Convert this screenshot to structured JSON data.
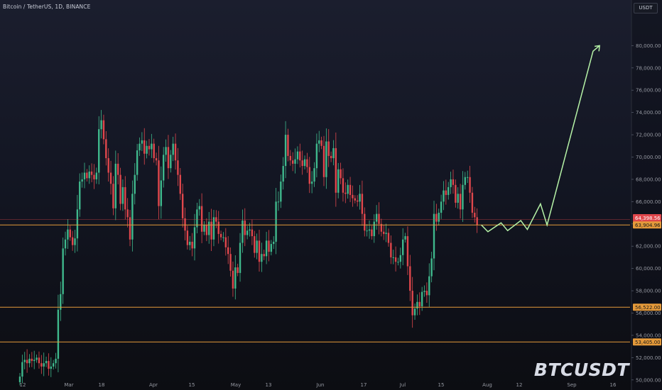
{
  "header": {
    "symbol_title": "Bitcoin / TetherUS, 1D, BINANCE"
  },
  "currency": "USDT",
  "watermark": "BTCUSDT",
  "chart_data": {
    "type": "candlestick",
    "title": "Bitcoin / TetherUS, 1D, BINANCE",
    "ylim": [
      49000,
      82000
    ],
    "y_ticks": [
      "50,000.00",
      "52,000.00",
      "54,000.00",
      "56,000.00",
      "58,000.00",
      "60,000.00",
      "62,000.00",
      "64,000.00",
      "66,000.00",
      "68,000.00",
      "70,000.00",
      "72,000.00",
      "74,000.00",
      "76,000.00",
      "78,000.00",
      "80,000.00"
    ],
    "x_ticks": [
      "12",
      "Mar",
      "18",
      "Apr",
      "15",
      "May",
      "13",
      "Jun",
      "17",
      "Jul",
      "15",
      "Aug",
      "12",
      "Sep",
      "16"
    ],
    "colors": {
      "up": "#3fb88c",
      "down": "#e0474c",
      "level": "#e59a3a",
      "projection": "#b6f3a7"
    },
    "closes": [
      50300,
      51600,
      51800,
      51500,
      51900,
      51700,
      51800,
      52000,
      51500,
      51200,
      51500,
      51700,
      51000,
      51200,
      51500,
      51900,
      56300,
      57700,
      61800,
      62600,
      63500,
      62800,
      62100,
      62700,
      65300,
      67800,
      68000,
      68600,
      68100,
      68700,
      68400,
      68000,
      68600,
      72500,
      73300,
      71600,
      69900,
      68600,
      67600,
      65400,
      69400,
      68400,
      65800,
      67300,
      65300,
      64600,
      62600,
      66700,
      68400,
      70600,
      71200,
      71500,
      70300,
      71000,
      70700,
      71200,
      69900,
      69700,
      65600,
      67900,
      70200,
      70900,
      69000,
      70200,
      71200,
      69700,
      68400,
      66700,
      64500,
      63400,
      62100,
      62400,
      61800,
      63700,
      65300,
      65600,
      63300,
      63900,
      63000,
      64200,
      62600,
      64600,
      64200,
      63100,
      62800,
      62800,
      61900,
      61300,
      59800,
      58200,
      60100,
      59600,
      62300,
      64300,
      63000,
      63400,
      63500,
      62900,
      61400,
      62500,
      60600,
      61300,
      61100,
      62500,
      61500,
      62200,
      62400,
      66000,
      66000,
      67800,
      69200,
      72000,
      70100,
      69700,
      69400,
      69800,
      70500,
      69700,
      69200,
      69800,
      69100,
      67600,
      67800,
      69000,
      71200,
      71500,
      71000,
      68200,
      71400,
      70100,
      69900,
      70800,
      66800,
      68900,
      68100,
      66800,
      66700,
      67500,
      66600,
      66300,
      66100,
      66000,
      66700,
      64900,
      63400,
      63400,
      63500,
      62900,
      64200,
      64900,
      64000,
      63300,
      63100,
      63200,
      62300,
      61000,
      61000,
      60600,
      60600,
      61200,
      62600,
      62900,
      60200,
      58000,
      55800,
      56400,
      57000,
      56600,
      57900,
      58000,
      57600,
      59300,
      60900,
      64900,
      64200,
      65000,
      66000,
      67000,
      66600,
      67300,
      68000,
      67500,
      65900,
      66700,
      65300,
      67500,
      68200,
      68200,
      66800,
      65000,
      64600,
      63900
    ],
    "levels": [
      {
        "price": 63904.96,
        "label": "63,904.96"
      },
      {
        "price": 56522.0,
        "label": "56,522.00"
      },
      {
        "price": 53405.0,
        "label": "53,405.00"
      }
    ],
    "last_price": {
      "value": 64398.56,
      "label": "64,398.56",
      "countdown": "16:18:28"
    },
    "projection": [
      [
        63904.96,
        0
      ],
      [
        63300,
        1
      ],
      [
        64100,
        3
      ],
      [
        63400,
        4
      ],
      [
        64300,
        6
      ],
      [
        63500,
        7
      ],
      [
        65800,
        9
      ],
      [
        63900,
        10
      ],
      [
        79500,
        17
      ],
      [
        80000,
        18
      ]
    ]
  }
}
